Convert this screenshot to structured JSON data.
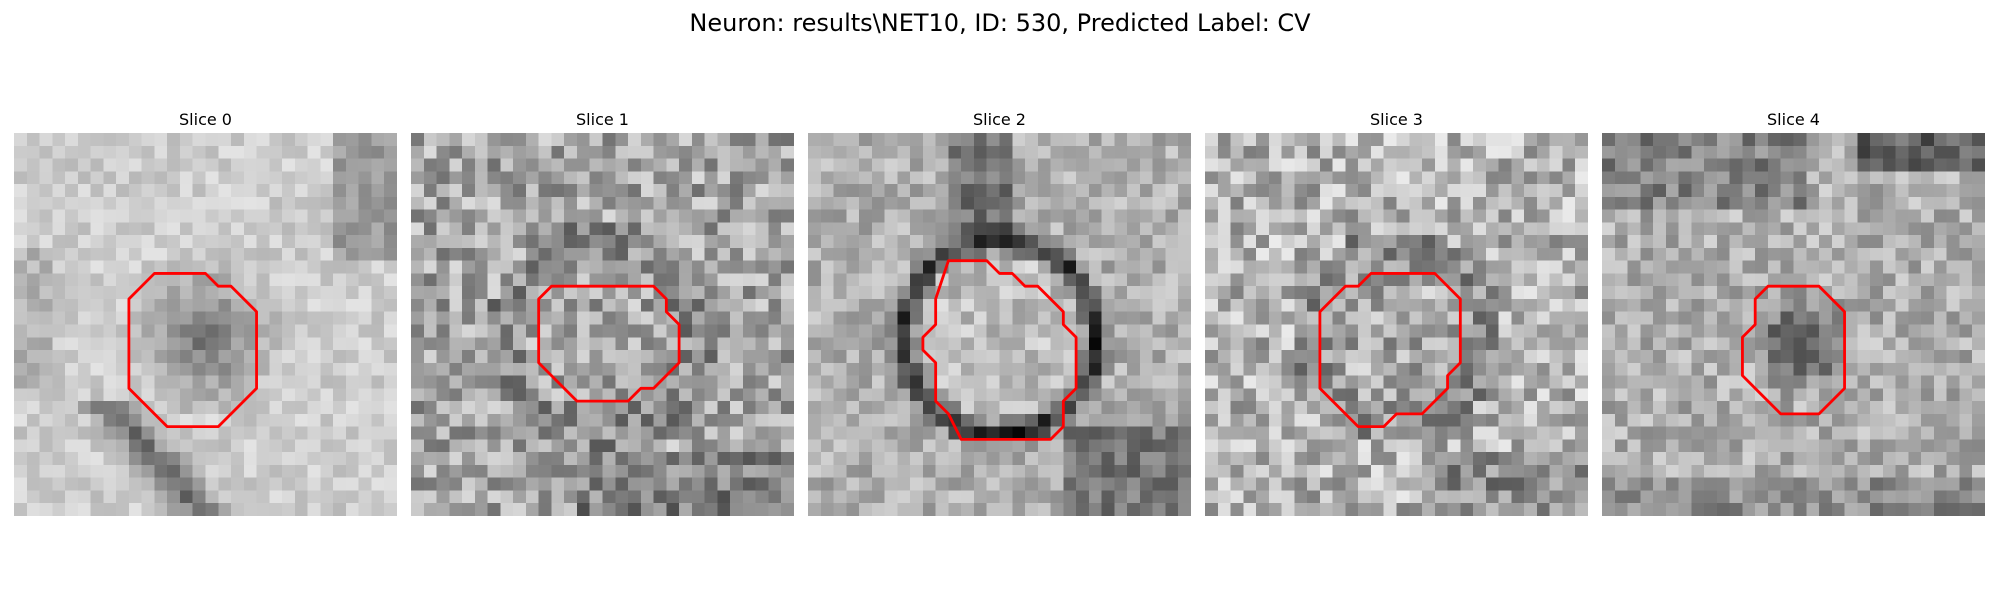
{
  "figure": {
    "title": "Neuron: results\\NET10, ID: 530, Predicted Label: CV",
    "contour_color": "#ff0000"
  },
  "panels": [
    {
      "title": "Slice 0",
      "pattern": "lumen-dark-center",
      "contour": [
        [
          11,
          11
        ],
        [
          15,
          11
        ],
        [
          16,
          12
        ],
        [
          17,
          12
        ],
        [
          19,
          14
        ],
        [
          19,
          20
        ],
        [
          17,
          22
        ],
        [
          16,
          23
        ],
        [
          12,
          23
        ],
        [
          9,
          20
        ],
        [
          9,
          13
        ]
      ]
    },
    {
      "title": "Slice 1",
      "pattern": "noisy-ring-faint",
      "contour": [
        [
          11,
          12
        ],
        [
          19,
          12
        ],
        [
          20,
          13
        ],
        [
          20,
          14
        ],
        [
          21,
          15
        ],
        [
          21,
          18
        ],
        [
          19,
          20
        ],
        [
          18,
          20
        ],
        [
          17,
          21
        ],
        [
          13,
          21
        ],
        [
          11,
          19
        ],
        [
          10,
          18
        ],
        [
          10,
          13
        ]
      ]
    },
    {
      "title": "Slice 2",
      "pattern": "dark-ring-bright-center",
      "contour": [
        [
          11,
          10
        ],
        [
          14,
          10
        ],
        [
          15,
          11
        ],
        [
          16,
          11
        ],
        [
          17,
          12
        ],
        [
          18,
          12
        ],
        [
          19,
          13
        ],
        [
          20,
          14
        ],
        [
          20,
          15
        ],
        [
          21,
          16
        ],
        [
          21,
          20
        ],
        [
          20,
          21
        ],
        [
          20,
          23
        ],
        [
          19,
          24
        ],
        [
          12,
          24
        ],
        [
          11,
          22
        ],
        [
          10,
          21
        ],
        [
          10,
          18
        ],
        [
          9,
          17
        ],
        [
          9,
          16
        ],
        [
          10,
          15
        ],
        [
          10,
          13
        ]
      ]
    },
    {
      "title": "Slice 3",
      "pattern": "noisy-ring",
      "contour": [
        [
          10,
          13
        ],
        [
          11,
          12
        ],
        [
          12,
          12
        ],
        [
          13,
          11
        ],
        [
          18,
          11
        ],
        [
          20,
          13
        ],
        [
          20,
          18
        ],
        [
          19,
          19
        ],
        [
          19,
          20
        ],
        [
          17,
          22
        ],
        [
          15,
          22
        ],
        [
          14,
          23
        ],
        [
          12,
          23
        ],
        [
          10,
          21
        ],
        [
          9,
          20
        ],
        [
          9,
          14
        ]
      ]
    },
    {
      "title": "Slice 4",
      "pattern": "small-dark-blob",
      "contour": [
        [
          13,
          12
        ],
        [
          17,
          12
        ],
        [
          18,
          13
        ],
        [
          19,
          14
        ],
        [
          19,
          20
        ],
        [
          17,
          22
        ],
        [
          14,
          22
        ],
        [
          12,
          20
        ],
        [
          11,
          19
        ],
        [
          11,
          16
        ],
        [
          12,
          15
        ],
        [
          12,
          13
        ]
      ]
    }
  ]
}
